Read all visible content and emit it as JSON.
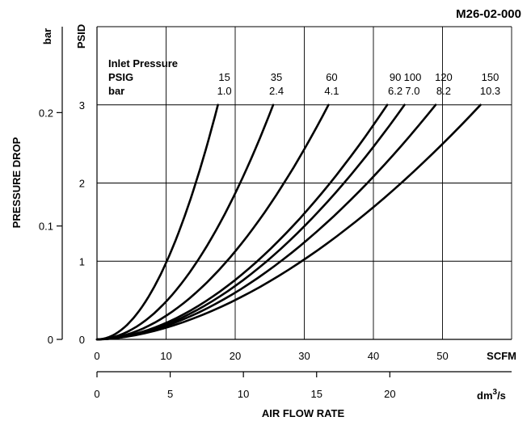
{
  "code": "M26-02-000",
  "chart_data": {
    "type": "line",
    "ylabel": "PRESSURE DROP",
    "xlabel": "AIR FLOW RATE",
    "y_primary_unit": "PSID",
    "y_secondary_unit": "bar",
    "x_primary_unit": "SCFM",
    "x_secondary_unit_base": "dm",
    "x_secondary_unit_exp": "3",
    "x_secondary_unit_tail": "/s",
    "xlim": [
      0,
      60
    ],
    "ylim": [
      0,
      4
    ],
    "x_ticks": [
      "0",
      "10",
      "20",
      "30",
      "40",
      "50"
    ],
    "y_ticks": [
      "0",
      "1",
      "2",
      "3"
    ],
    "bar_ticks": [
      {
        "label": "0",
        "value": 0
      },
      {
        "label": "0.1",
        "value": 0.1
      },
      {
        "label": "0.2",
        "value": 0.2
      }
    ],
    "dm3s_ticks": [
      {
        "label": "0",
        "value": 0
      },
      {
        "label": "5",
        "value": 5
      },
      {
        "label": "10",
        "value": 10
      },
      {
        "label": "15",
        "value": 15
      },
      {
        "label": "20",
        "value": 20
      }
    ],
    "legend_title": "Inlet Pressure",
    "legend_row_psig": "PSIG",
    "legend_row_bar": "bar",
    "grid": true,
    "series": [
      {
        "psig": "15",
        "bar": "1.0",
        "end": [
          17.5,
          3.0
        ],
        "exponent": 2.0
      },
      {
        "psig": "35",
        "bar": "2.4",
        "end": [
          25.5,
          3.0
        ],
        "exponent": 1.95
      },
      {
        "psig": "60",
        "bar": "4.1",
        "end": [
          33.5,
          3.0
        ],
        "exponent": 1.9
      },
      {
        "psig": "90",
        "bar": "6.2",
        "end": [
          42.0,
          3.0
        ],
        "exponent": 1.85
      },
      {
        "psig": "100",
        "bar": "7.0",
        "end": [
          44.5,
          3.0
        ],
        "exponent": 1.85
      },
      {
        "psig": "120",
        "bar": "8.2",
        "end": [
          49.0,
          3.0
        ],
        "exponent": 1.8
      },
      {
        "psig": "150",
        "bar": "10.3",
        "end": [
          55.5,
          3.0
        ],
        "exponent": 1.75
      }
    ]
  }
}
